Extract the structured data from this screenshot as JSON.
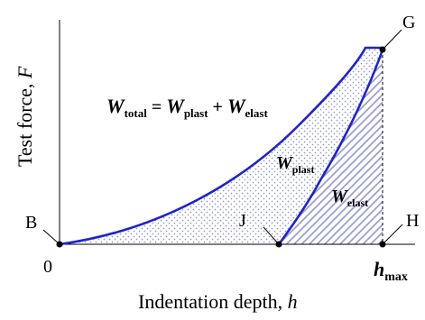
{
  "axes": {
    "y_label_text": "Test force, ",
    "y_label_var": "F",
    "x_label_text": "Indentation depth, ",
    "x_label_var": "h",
    "origin_label": "0",
    "x_max_main": "h",
    "x_max_sub": "max"
  },
  "points": {
    "B": "B",
    "G": "G",
    "H": "H",
    "J": "J"
  },
  "equation": {
    "lhs_main": "W",
    "lhs_sub": "total",
    "equals": " = ",
    "term1_main": "W",
    "term1_sub": "plast",
    "plus": " + ",
    "term2_main": "W",
    "term2_sub": "elast"
  },
  "regions": {
    "plast_main": "W",
    "plast_sub": "plast",
    "elast_main": "W",
    "elast_sub": "elast"
  },
  "colors": {
    "curve": "#1f24c8",
    "plast_dots": "#8f95c8",
    "elast_hatch": "#8f95c8",
    "axis": "#000000",
    "text": "#000000"
  }
}
